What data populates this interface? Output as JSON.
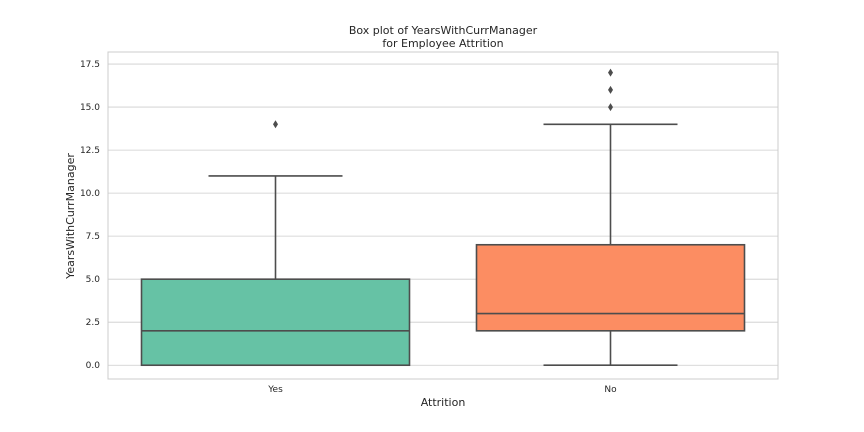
{
  "chart_data": {
    "type": "box",
    "title": [
      "Box plot of YearsWithCurrManager",
      "for Employee Attrition"
    ],
    "xlabel": "Attrition",
    "ylabel": "YearsWithCurrManager",
    "ylim": [
      -0.8,
      18.2
    ],
    "yticks": [
      0.0,
      2.5,
      5.0,
      7.5,
      10.0,
      12.5,
      15.0,
      17.5
    ],
    "ytick_labels": [
      "0.0",
      "2.5",
      "5.0",
      "7.5",
      "10.0",
      "12.5",
      "15.0",
      "17.5"
    ],
    "grid": true,
    "categories": [
      "Yes",
      "No"
    ],
    "boxes": [
      {
        "category": "Yes",
        "color": "#66c2a5",
        "whislo": 0,
        "q1": 0,
        "med": 2,
        "q3": 5,
        "whishi": 11,
        "fliers": [
          14
        ]
      },
      {
        "category": "No",
        "color": "#fc8d62",
        "whislo": 0,
        "q1": 2,
        "med": 3,
        "q3": 7,
        "whishi": 14,
        "fliers": [
          15,
          16,
          17
        ]
      }
    ]
  }
}
